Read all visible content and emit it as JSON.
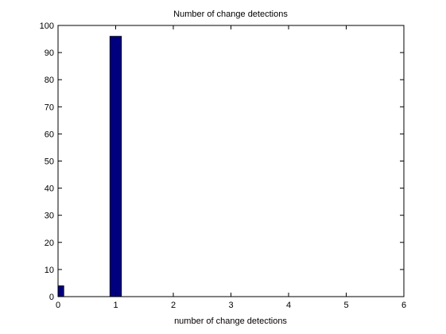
{
  "chart_data": {
    "type": "bar",
    "title": "Number of change detections",
    "xlabel": "number of change detections",
    "ylabel": "",
    "x": [
      0,
      1
    ],
    "values": [
      4,
      96
    ],
    "xlim": [
      0,
      6
    ],
    "ylim": [
      0,
      100
    ],
    "xticks": [
      "0",
      "1",
      "2",
      "3",
      "4",
      "5",
      "6"
    ],
    "yticks": [
      "0",
      "10",
      "20",
      "30",
      "40",
      "50",
      "60",
      "70",
      "80",
      "90",
      "100"
    ],
    "bar_color": "#00007f",
    "grid": false,
    "legend": "none"
  }
}
